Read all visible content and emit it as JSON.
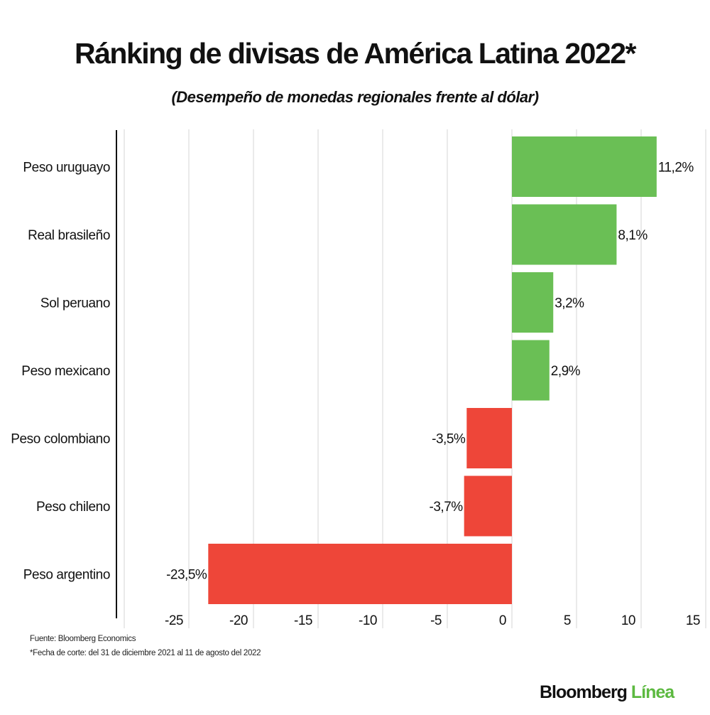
{
  "chart_data": {
    "type": "bar",
    "orientation": "horizontal",
    "title": "Ránking de divisas de América Latina 2022*",
    "subtitle": "(Desempeño de monedas regionales frente al dólar)",
    "categories": [
      "Peso uruguayo",
      "Real brasileño",
      "Sol peruano",
      "Peso mexicano",
      "Peso colombiano",
      "Peso chileno",
      "Peso argentino"
    ],
    "values": [
      11.2,
      8.1,
      3.2,
      2.9,
      -3.5,
      -3.7,
      -23.5
    ],
    "data_labels": [
      "11,2%",
      "8,1%",
      "3,2%",
      "2,9%",
      "-3,5%",
      "-3,7%",
      "-23,5%"
    ],
    "xlim": [
      -30,
      15
    ],
    "xticks": [
      -25,
      -20,
      -15,
      -10,
      -5,
      0,
      5,
      10,
      15
    ],
    "xtick_labels": [
      "-25",
      "-20",
      "-15",
      "-10",
      "-5",
      "0",
      "5",
      "10",
      "15"
    ],
    "grid": true,
    "colors": {
      "positive": "#6abf55",
      "negative": "#ee4639"
    }
  },
  "footer": {
    "source": "Fuente: Bloomberg Economics",
    "note": "*Fecha de corte: del 31 de diciembre 2021 al 11 de agosto del 2022"
  },
  "logo": {
    "part1": "Bloomberg",
    "part2": "Línea"
  }
}
